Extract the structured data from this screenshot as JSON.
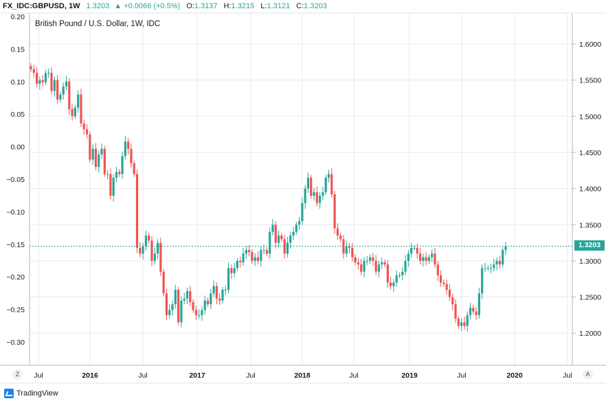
{
  "header": {
    "symbol": "FX_IDC:GBPUSD, 1W",
    "last": "1.3203",
    "change": "▲ +0.0066 (+0.5%)",
    "o_label": "O:",
    "o": "1.3137",
    "h_label": "H:",
    "h": "1.3215",
    "l_label": "L:",
    "l": "1.3121",
    "c_label": "C:",
    "c": "1.3203"
  },
  "legend_text": "British Pound / U.S. Dollar, 1W, IDC",
  "price_tag": "1.3203",
  "corner_left": "Z",
  "corner_right": "A",
  "brand": "TradingView",
  "colors": {
    "up": "#26a69a",
    "down": "#ef5350",
    "grid": "#e6e9ef",
    "last_line": "#26a69a"
  },
  "chart_data": {
    "type": "candlestick",
    "right_axis": {
      "ticks": [
        "1.6000",
        "1.5500",
        "1.5000",
        "1.4500",
        "1.4000",
        "1.3500",
        "1.3000",
        "1.2500",
        "1.2000"
      ],
      "range": [
        1.15,
        1.65
      ]
    },
    "left_axis": {
      "ticks": [
        "0.20",
        "0.15",
        "0.10",
        "0.05",
        "0.00",
        "−0.05",
        "−0.10",
        "−0.15",
        "−0.20",
        "−0.25",
        "−0.30"
      ],
      "range": [
        -0.35,
        0.2
      ]
    },
    "x_axis": {
      "ticks": [
        "Jul",
        "2016",
        "Jul",
        "2017",
        "Jul",
        "2018",
        "Jul",
        "2019",
        "Jul",
        "2020",
        "Jul"
      ]
    },
    "last_price": 1.3203,
    "weekly_closes": [
      1.565,
      1.56,
      1.545,
      1.55,
      1.547,
      1.56,
      1.56,
      1.535,
      1.55,
      1.523,
      1.53,
      1.541,
      1.548,
      1.51,
      1.5,
      1.512,
      1.53,
      1.49,
      1.482,
      1.475,
      1.44,
      1.455,
      1.43,
      1.447,
      1.455,
      1.42,
      1.42,
      1.39,
      1.415,
      1.423,
      1.42,
      1.445,
      1.465,
      1.455,
      1.435,
      1.42,
      1.318,
      1.31,
      1.32,
      1.335,
      1.328,
      1.3,
      1.31,
      1.325,
      1.285,
      1.255,
      1.225,
      1.232,
      1.24,
      1.26,
      1.215,
      1.245,
      1.248,
      1.258,
      1.243,
      1.232,
      1.225,
      1.225,
      1.232,
      1.245,
      1.24,
      1.255,
      1.265,
      1.248,
      1.245,
      1.26,
      1.26,
      1.29,
      1.283,
      1.29,
      1.3,
      1.298,
      1.31,
      1.315,
      1.312,
      1.3,
      1.305,
      1.3,
      1.315,
      1.315,
      1.31,
      1.34,
      1.35,
      1.325,
      1.335,
      1.33,
      1.31,
      1.325,
      1.335,
      1.34,
      1.35,
      1.355,
      1.38,
      1.4,
      1.415,
      1.39,
      1.395,
      1.38,
      1.39,
      1.395,
      1.415,
      1.42,
      1.392,
      1.345,
      1.335,
      1.33,
      1.31,
      1.32,
      1.318,
      1.305,
      1.298,
      1.295,
      1.285,
      1.3,
      1.3,
      1.305,
      1.3,
      1.285,
      1.295,
      1.298,
      1.295,
      1.27,
      1.265,
      1.27,
      1.28,
      1.28,
      1.285,
      1.3,
      1.31,
      1.318,
      1.318,
      1.31,
      1.3,
      1.305,
      1.3,
      1.305,
      1.31,
      1.295,
      1.28,
      1.27,
      1.268,
      1.26,
      1.25,
      1.24,
      1.22,
      1.21,
      1.215,
      1.21,
      1.225,
      1.235,
      1.23,
      1.225,
      1.255,
      1.29,
      1.29,
      1.29,
      1.29,
      1.295,
      1.3,
      1.295,
      1.315,
      1.3203
    ]
  }
}
